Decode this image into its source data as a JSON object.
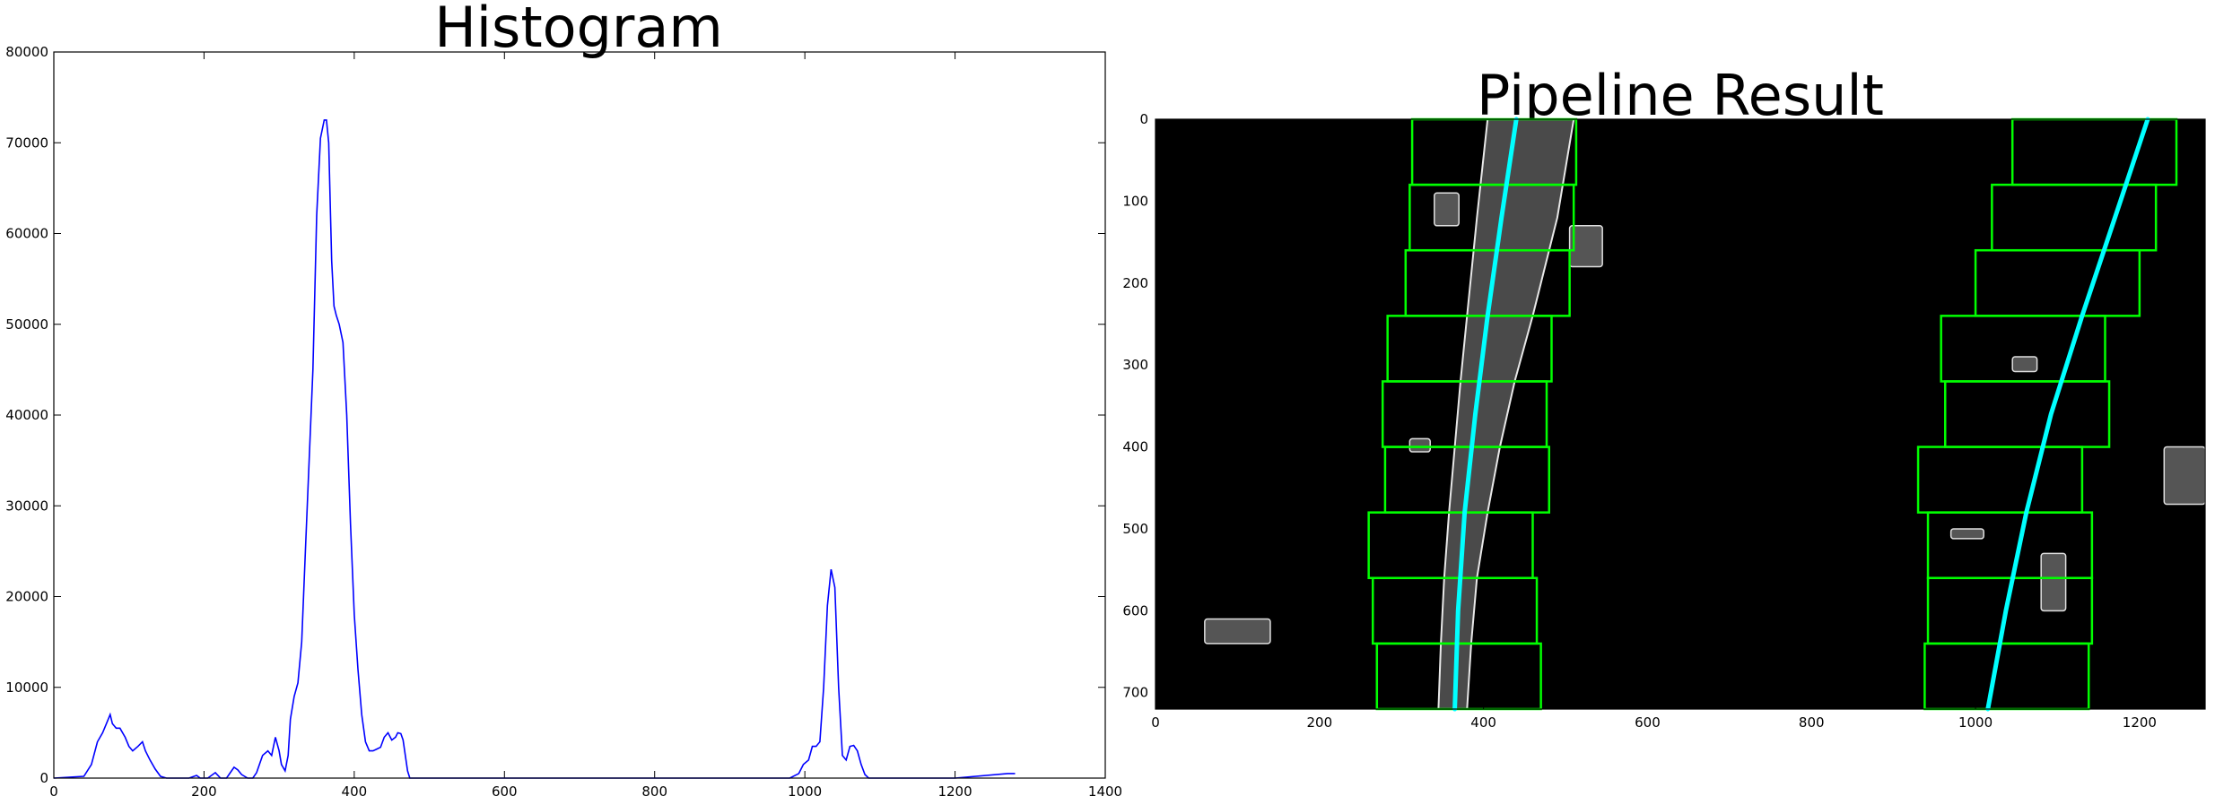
{
  "chart_data": [
    {
      "type": "line",
      "title": "Histogram",
      "xlabel": "",
      "ylabel": "",
      "xlim": [
        0,
        1400
      ],
      "ylim": [
        0,
        80000
      ],
      "xticks": [
        0,
        200,
        400,
        600,
        800,
        1000,
        1200,
        1400
      ],
      "yticks": [
        0,
        10000,
        20000,
        30000,
        40000,
        50000,
        60000,
        70000,
        80000
      ],
      "grid": false,
      "color": "#0000ff",
      "series": [
        {
          "x": [
            0,
            40,
            50,
            58,
            65,
            70,
            75,
            78,
            83,
            88,
            95,
            100,
            105,
            112,
            118,
            122,
            128,
            135,
            142,
            150,
            160,
            180,
            190,
            195,
            205,
            215,
            222,
            230,
            240,
            245,
            250,
            258,
            265,
            270,
            278,
            285,
            290,
            295,
            300,
            303,
            308,
            312,
            315,
            320,
            325,
            330,
            335,
            340,
            345,
            350,
            355,
            360,
            363,
            366,
            370,
            373,
            376,
            380,
            385,
            390,
            395,
            400,
            405,
            410,
            415,
            420,
            425,
            430,
            435,
            440,
            445,
            450,
            455,
            458,
            462,
            465,
            468,
            471,
            474,
            480,
            500,
            700,
            800,
            980,
            992,
            998,
            1005,
            1010,
            1015,
            1020,
            1025,
            1030,
            1035,
            1040,
            1045,
            1050,
            1055,
            1060,
            1065,
            1070,
            1075,
            1080,
            1085,
            1090,
            1100,
            1200,
            1270,
            1280
          ],
          "y": [
            0,
            200,
            1500,
            4000,
            5000,
            6000,
            7000,
            6000,
            5500,
            5500,
            4500,
            3500,
            3000,
            3500,
            4000,
            3000,
            2000,
            1000,
            200,
            0,
            0,
            0,
            300,
            0,
            0,
            600,
            0,
            0,
            1200,
            900,
            400,
            0,
            0,
            600,
            2500,
            3000,
            2500,
            4500,
            3000,
            1500,
            800,
            2500,
            6500,
            9000,
            10500,
            15000,
            25000,
            35000,
            45000,
            62000,
            70500,
            72500,
            72500,
            70000,
            57000,
            52000,
            51000,
            50000,
            48000,
            40000,
            28000,
            18000,
            12000,
            7000,
            4000,
            3000,
            3000,
            3200,
            3400,
            4500,
            5000,
            4200,
            4500,
            5000,
            4900,
            4200,
            2500,
            800,
            0,
            0,
            0,
            0,
            0,
            0,
            500,
            1500,
            2000,
            3500,
            3500,
            4000,
            10000,
            19000,
            23000,
            21000,
            10000,
            2500,
            2000,
            3500,
            3600,
            3000,
            1500,
            400,
            0,
            0,
            0,
            0,
            500,
            500
          ]
        }
      ]
    },
    {
      "type": "image",
      "title": "Pipeline Result",
      "xlabel": "",
      "ylabel": "",
      "xlim": [
        0,
        1280
      ],
      "ylim": [
        720,
        0
      ],
      "xticks": [
        0,
        200,
        400,
        600,
        800,
        1000,
        1200
      ],
      "yticks": [
        0,
        100,
        200,
        300,
        400,
        500,
        600,
        700
      ],
      "grid": false,
      "window_color": "#00ff00",
      "fit_color": "#00ffff",
      "left_windows": [
        {
          "x0": 270,
          "x1": 470,
          "y0": 640,
          "y1": 720
        },
        {
          "x0": 265,
          "x1": 465,
          "y0": 560,
          "y1": 640
        },
        {
          "x0": 260,
          "x1": 460,
          "y0": 480,
          "y1": 560
        },
        {
          "x0": 280,
          "x1": 480,
          "y0": 400,
          "y1": 480
        },
        {
          "x0": 277,
          "x1": 477,
          "y0": 320,
          "y1": 400
        },
        {
          "x0": 283,
          "x1": 483,
          "y0": 240,
          "y1": 320
        },
        {
          "x0": 305,
          "x1": 505,
          "y0": 160,
          "y1": 240
        },
        {
          "x0": 310,
          "x1": 510,
          "y0": 80,
          "y1": 160
        },
        {
          "x0": 313,
          "x1": 513,
          "y0": 0,
          "y1": 80
        }
      ],
      "right_windows": [
        {
          "x0": 938,
          "x1": 1138,
          "y0": 640,
          "y1": 720
        },
        {
          "x0": 942,
          "x1": 1142,
          "y0": 560,
          "y1": 640
        },
        {
          "x0": 942,
          "x1": 1142,
          "y0": 480,
          "y1": 560
        },
        {
          "x0": 930,
          "x1": 1130,
          "y0": 400,
          "y1": 480
        },
        {
          "x0": 963,
          "x1": 1163,
          "y0": 320,
          "y1": 400
        },
        {
          "x0": 958,
          "x1": 1158,
          "y0": 240,
          "y1": 320
        },
        {
          "x0": 1000,
          "x1": 1200,
          "y0": 160,
          "y1": 240
        },
        {
          "x0": 1020,
          "x1": 1220,
          "y0": 80,
          "y1": 160
        },
        {
          "x0": 1045,
          "x1": 1245,
          "y0": 0,
          "y1": 80
        }
      ],
      "left_fit": {
        "x": [
          365,
          369,
          377,
          390,
          405,
          422,
          440
        ],
        "y": [
          720,
          600,
          480,
          360,
          240,
          120,
          0
        ]
      },
      "right_fit": {
        "x": [
          1015,
          1037,
          1062,
          1092,
          1130,
          1170,
          1210
        ],
        "y": [
          720,
          600,
          480,
          360,
          240,
          120,
          0
        ]
      },
      "left_lane": {
        "left_x": [
          345,
          348,
          352,
          358,
          365,
          372,
          380,
          392,
          405
        ],
        "right_x": [
          380,
          385,
          392,
          405,
          420,
          438,
          460,
          490,
          510
        ],
        "y": [
          720,
          640,
          560,
          480,
          400,
          320,
          240,
          120,
          0
        ]
      },
      "blobs": [
        {
          "x": 60,
          "y": 610,
          "w": 80,
          "h": 30
        },
        {
          "x": 1045,
          "y": 290,
          "w": 30,
          "h": 18
        },
        {
          "x": 1080,
          "y": 530,
          "w": 30,
          "h": 70
        },
        {
          "x": 970,
          "y": 500,
          "w": 40,
          "h": 12
        },
        {
          "x": 505,
          "y": 130,
          "w": 40,
          "h": 50
        },
        {
          "x": 340,
          "y": 90,
          "w": 30,
          "h": 40
        },
        {
          "x": 310,
          "y": 390,
          "w": 25,
          "h": 16
        },
        {
          "x": 1230,
          "y": 400,
          "w": 50,
          "h": 70
        }
      ]
    }
  ]
}
